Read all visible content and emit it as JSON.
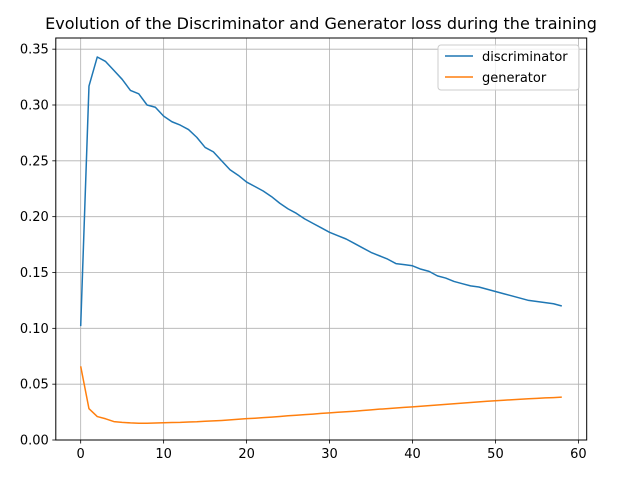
{
  "chart_data": {
    "type": "line",
    "title": "Evolution of the Discriminator and Generator loss during the training",
    "xlabel": "",
    "ylabel": "",
    "xlim": [
      -3,
      61
    ],
    "ylim": [
      0.0,
      0.36
    ],
    "grid": true,
    "legend_position": "top-right",
    "x_ticks": [
      0,
      10,
      20,
      30,
      40,
      50,
      60
    ],
    "x_tick_labels": [
      "0",
      "10",
      "20",
      "30",
      "40",
      "50",
      "60"
    ],
    "y_ticks": [
      0.0,
      0.05,
      0.1,
      0.15,
      0.2,
      0.25,
      0.3,
      0.35
    ],
    "y_tick_labels": [
      "0.00",
      "0.05",
      "0.10",
      "0.15",
      "0.20",
      "0.25",
      "0.30",
      "0.35"
    ],
    "x": [
      0,
      1,
      2,
      3,
      4,
      5,
      6,
      7,
      8,
      9,
      10,
      11,
      12,
      13,
      14,
      15,
      16,
      17,
      18,
      19,
      20,
      21,
      22,
      23,
      24,
      25,
      26,
      27,
      28,
      29,
      30,
      31,
      32,
      33,
      34,
      35,
      36,
      37,
      38,
      39,
      40,
      41,
      42,
      43,
      44,
      45,
      46,
      47,
      48,
      49,
      50,
      51,
      52,
      53,
      54,
      55,
      56,
      57,
      58
    ],
    "series": [
      {
        "name": "discriminator",
        "color": "#1f77b4",
        "values": [
          0.102,
          0.317,
          0.343,
          0.339,
          0.331,
          0.323,
          0.313,
          0.31,
          0.3,
          0.298,
          0.29,
          0.285,
          0.282,
          0.278,
          0.271,
          0.262,
          0.258,
          0.25,
          0.242,
          0.237,
          0.231,
          0.227,
          0.223,
          0.218,
          0.212,
          0.207,
          0.203,
          0.198,
          0.194,
          0.19,
          0.186,
          0.183,
          0.18,
          0.176,
          0.172,
          0.168,
          0.165,
          0.162,
          0.158,
          0.157,
          0.156,
          0.153,
          0.151,
          0.147,
          0.145,
          0.142,
          0.14,
          0.138,
          0.137,
          0.135,
          0.133,
          0.131,
          0.129,
          0.127,
          0.125,
          0.124,
          0.123,
          0.122,
          0.12
        ]
      },
      {
        "name": "generator",
        "color": "#ff7f0e",
        "values": [
          0.066,
          0.028,
          0.021,
          0.019,
          0.0165,
          0.0158,
          0.0153,
          0.015,
          0.015,
          0.0152,
          0.0155,
          0.0157,
          0.0158,
          0.0161,
          0.0163,
          0.0168,
          0.0171,
          0.0175,
          0.018,
          0.0186,
          0.0191,
          0.0195,
          0.02,
          0.0205,
          0.0211,
          0.0217,
          0.0222,
          0.0227,
          0.0232,
          0.0238,
          0.0243,
          0.0248,
          0.0253,
          0.0258,
          0.0264,
          0.027,
          0.0276,
          0.0281,
          0.0287,
          0.0292,
          0.0297,
          0.0302,
          0.0308,
          0.0313,
          0.0319,
          0.0325,
          0.033,
          0.0336,
          0.0341,
          0.0347,
          0.0352,
          0.0356,
          0.0361,
          0.0365,
          0.0369,
          0.0373,
          0.0377,
          0.038,
          0.0384
        ]
      }
    ]
  }
}
